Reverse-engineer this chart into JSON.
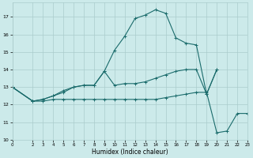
{
  "xlabel": "Humidex (Indice chaleur)",
  "bg_color": "#cceaea",
  "grid_color": "#aacccc",
  "line_color": "#1a6b6b",
  "xlim": [
    0,
    23
  ],
  "ylim": [
    10,
    17.8
  ],
  "yticks": [
    10,
    11,
    12,
    13,
    14,
    15,
    16,
    17
  ],
  "xticks": [
    0,
    2,
    3,
    4,
    5,
    6,
    7,
    8,
    9,
    10,
    11,
    12,
    13,
    14,
    15,
    16,
    17,
    18,
    19,
    20,
    21,
    22,
    23
  ],
  "curves": [
    {
      "x": [
        0,
        2,
        3,
        4,
        5,
        6,
        7,
        8,
        9,
        10,
        11,
        12,
        13,
        14,
        15,
        16,
        17,
        18,
        19,
        20
      ],
      "y": [
        13.0,
        12.2,
        12.3,
        12.5,
        12.8,
        13.0,
        13.1,
        13.1,
        13.9,
        15.1,
        15.9,
        16.9,
        17.1,
        17.4,
        17.2,
        15.8,
        15.5,
        15.4,
        12.6,
        14.0
      ]
    },
    {
      "x": [
        0,
        2,
        3,
        4,
        5,
        6,
        7,
        8,
        9,
        10,
        11,
        12,
        13,
        14,
        15,
        16,
        17,
        18,
        19,
        20
      ],
      "y": [
        13.0,
        12.2,
        12.3,
        12.5,
        12.7,
        13.0,
        13.1,
        13.1,
        13.9,
        13.1,
        13.2,
        13.2,
        13.3,
        13.5,
        13.7,
        13.9,
        14.0,
        14.0,
        12.6,
        14.0
      ]
    },
    {
      "x": [
        0,
        2,
        3,
        4,
        5,
        6,
        7,
        8,
        9,
        10,
        11,
        12,
        13,
        14,
        15,
        16,
        17,
        18,
        19,
        20,
        21,
        22,
        23
      ],
      "y": [
        13.0,
        12.2,
        12.2,
        12.3,
        12.3,
        12.3,
        12.3,
        12.3,
        12.3,
        12.3,
        12.3,
        12.3,
        12.3,
        12.3,
        12.4,
        12.5,
        12.6,
        12.7,
        12.7,
        10.4,
        10.5,
        11.5,
        11.5
      ]
    }
  ]
}
